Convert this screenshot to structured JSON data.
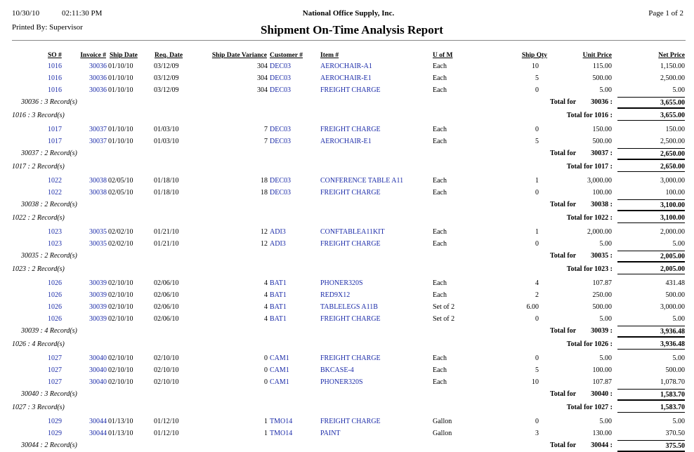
{
  "header": {
    "date": "10/30/10",
    "time": "02:11:30 PM",
    "company": "National Office Supply, Inc.",
    "page": "Page 1 of 2",
    "printed_by": "Printed By: Supervisor",
    "title": "Shipment On-Time Analysis Report"
  },
  "columns": [
    "SO #",
    "Invoice #",
    "Ship Date",
    "Req. Date",
    "Ship Date Variance",
    "Customer #",
    "Item #",
    "U of M",
    "Ship Qty",
    "Unit Price",
    "Net Price"
  ],
  "groups": [
    {
      "invoices": [
        {
          "rows": [
            [
              "1016",
              "30036",
              "01/10/10",
              "03/12/09",
              "304",
              "DEC03",
              "AEROCHAIR-A1",
              "Each",
              "10",
              "115.00",
              "1,150.00"
            ],
            [
              "1016",
              "30036",
              "01/10/10",
              "03/12/09",
              "304",
              "DEC03",
              "AEROCHAIR-E1",
              "Each",
              "5",
              "500.00",
              "2,500.00"
            ],
            [
              "1016",
              "30036",
              "01/10/10",
              "03/12/09",
              "304",
              "DEC03",
              "FREIGHT CHARGE",
              "Each",
              "0",
              "5.00",
              "5.00"
            ]
          ],
          "records": "30036 : 3 Record(s)",
          "total_label": "Total for",
          "total_key": "30036 :",
          "total": "3,655.00"
        }
      ],
      "records": "1016 : 3 Record(s)",
      "total_label": "Total for 1016 :",
      "total": "3,655.00"
    },
    {
      "invoices": [
        {
          "rows": [
            [
              "1017",
              "30037",
              "01/10/10",
              "01/03/10",
              "7",
              "DEC03",
              "FREIGHT CHARGE",
              "Each",
              "0",
              "150.00",
              "150.00"
            ],
            [
              "1017",
              "30037",
              "01/10/10",
              "01/03/10",
              "7",
              "DEC03",
              "AEROCHAIR-E1",
              "Each",
              "5",
              "500.00",
              "2,500.00"
            ]
          ],
          "records": "30037 : 2 Record(s)",
          "total_label": "Total for",
          "total_key": "30037 :",
          "total": "2,650.00"
        }
      ],
      "records": "1017 : 2 Record(s)",
      "total_label": "Total for 1017 :",
      "total": "2,650.00"
    },
    {
      "invoices": [
        {
          "rows": [
            [
              "1022",
              "30038",
              "02/05/10",
              "01/18/10",
              "18",
              "DEC03",
              "CONFERENCE TABLE A11",
              "Each",
              "1",
              "3,000.00",
              "3,000.00"
            ],
            [
              "1022",
              "30038",
              "02/05/10",
              "01/18/10",
              "18",
              "DEC03",
              "FREIGHT CHARGE",
              "Each",
              "0",
              "100.00",
              "100.00"
            ]
          ],
          "records": "30038 : 2 Record(s)",
          "total_label": "Total for",
          "total_key": "30038 :",
          "total": "3,100.00"
        }
      ],
      "records": "1022 : 2 Record(s)",
      "total_label": "Total for 1022 :",
      "total": "3,100.00"
    },
    {
      "invoices": [
        {
          "rows": [
            [
              "1023",
              "30035",
              "02/02/10",
              "01/21/10",
              "12",
              "ADI3",
              "CONFTABLEA11KIT",
              "Each",
              "1",
              "2,000.00",
              "2,000.00"
            ],
            [
              "1023",
              "30035",
              "02/02/10",
              "01/21/10",
              "12",
              "ADI3",
              "FREIGHT CHARGE",
              "Each",
              "0",
              "5.00",
              "5.00"
            ]
          ],
          "records": "30035 : 2 Record(s)",
          "total_label": "Total for",
          "total_key": "30035 :",
          "total": "2,005.00"
        }
      ],
      "records": "1023 : 2 Record(s)",
      "total_label": "Total for 1023 :",
      "total": "2,005.00"
    },
    {
      "invoices": [
        {
          "rows": [
            [
              "1026",
              "30039",
              "02/10/10",
              "02/06/10",
              "4",
              "BAT1",
              "PHONER320S",
              "Each",
              "4",
              "107.87",
              "431.48"
            ],
            [
              "1026",
              "30039",
              "02/10/10",
              "02/06/10",
              "4",
              "BAT1",
              "RED9X12",
              "Each",
              "2",
              "250.00",
              "500.00"
            ],
            [
              "1026",
              "30039",
              "02/10/10",
              "02/06/10",
              "4",
              "BAT1",
              "TABLELEGS A11B",
              "Set of 2",
              "6.00",
              "500.00",
              "3,000.00"
            ],
            [
              "1026",
              "30039",
              "02/10/10",
              "02/06/10",
              "4",
              "BAT1",
              "FREIGHT CHARGE",
              "Set of 2",
              "0",
              "5.00",
              "5.00"
            ]
          ],
          "records": "30039 : 4 Record(s)",
          "total_label": "Total for",
          "total_key": "30039 :",
          "total": "3,936.48"
        }
      ],
      "records": "1026 : 4 Record(s)",
      "total_label": "Total for 1026 :",
      "total": "3,936.48"
    },
    {
      "invoices": [
        {
          "rows": [
            [
              "1027",
              "30040",
              "02/10/10",
              "02/10/10",
              "0",
              "CAM1",
              "FREIGHT CHARGE",
              "Each",
              "0",
              "5.00",
              "5.00"
            ],
            [
              "1027",
              "30040",
              "02/10/10",
              "02/10/10",
              "0",
              "CAM1",
              "BKCASE-4",
              "Each",
              "5",
              "100.00",
              "500.00"
            ],
            [
              "1027",
              "30040",
              "02/10/10",
              "02/10/10",
              "0",
              "CAM1",
              "PHONER320S",
              "Each",
              "10",
              "107.87",
              "1,078.70"
            ]
          ],
          "records": "30040 : 3 Record(s)",
          "total_label": "Total for",
          "total_key": "30040 :",
          "total": "1,583.70"
        }
      ],
      "records": "1027 : 3 Record(s)",
      "total_label": "Total for 1027 :",
      "total": "1,583.70"
    },
    {
      "invoices": [
        {
          "rows": [
            [
              "1029",
              "30044",
              "01/13/10",
              "01/12/10",
              "1",
              "TMO14",
              "FREIGHT CHARGE",
              "Gallon",
              "0",
              "5.00",
              "5.00"
            ],
            [
              "1029",
              "30044",
              "01/13/10",
              "01/12/10",
              "1",
              "TMO14",
              "PAINT",
              "Gallon",
              "3",
              "130.00",
              "370.50"
            ]
          ],
          "records": "30044 : 2 Record(s)",
          "total_label": "Total for",
          "total_key": "30044 :",
          "total": "375.50"
        }
      ]
    }
  ]
}
